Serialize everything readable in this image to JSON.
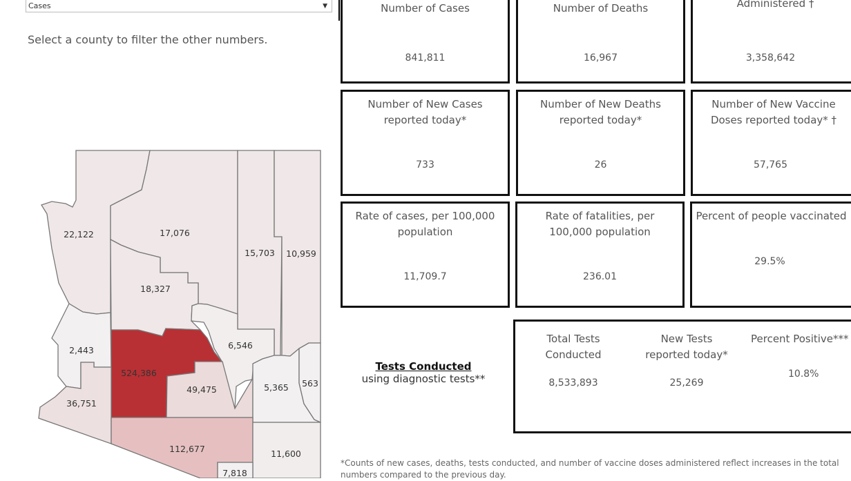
{
  "filter": {
    "selected": "Cases"
  },
  "hint": "Select a county to filter the other numbers.",
  "cards": [
    {
      "title": "Number of Cases",
      "value": "841,811"
    },
    {
      "title": "Number of Deaths",
      "value": "16,967"
    },
    {
      "title": "Number of Vaccine Doses Administered †",
      "value": "3,358,642"
    },
    {
      "title": "Number of New Cases reported today*",
      "value": "733"
    },
    {
      "title": "Number of New Deaths reported today*",
      "value": "26"
    },
    {
      "title": "Number of New Vaccine Doses reported today* †",
      "value": "57,765"
    },
    {
      "title": "Rate of cases, per 100,000 population",
      "value": "11,709.7"
    },
    {
      "title": "Rate of fatalities, per 100,000 population",
      "value": "236.01"
    },
    {
      "title": "Percent of people vaccinated",
      "value": "29.5%"
    }
  ],
  "tests": {
    "heading": "Tests Conducted",
    "sub": "using diagnostic tests**",
    "cols": [
      {
        "title": "Total Tests Conducted",
        "value": "8,533,893"
      },
      {
        "title": "New Tests reported today*",
        "value": "25,269"
      },
      {
        "title": "Percent Positive***",
        "value": "10.8%"
      }
    ]
  },
  "footnote": "*Counts of new cases, deaths, tests conducted, and number of vaccine doses administered reflect increases in the total numbers compared to the previous day.",
  "counties": [
    {
      "label": "22,122",
      "color": "#f0e8e8"
    },
    {
      "label": "17,076",
      "color": "#f0e8e8"
    },
    {
      "label": "15,703",
      "color": "#f0e8e8"
    },
    {
      "label": "10,959",
      "color": "#f0e8e8"
    },
    {
      "label": "18,327",
      "color": "#f0e8e8"
    },
    {
      "label": "6,546",
      "color": "#f2eeee"
    },
    {
      "label": "2,443",
      "color": "#f2f0f0"
    },
    {
      "label": "524,386",
      "color": "#b83034"
    },
    {
      "label": "49,475",
      "color": "#ecdbdb"
    },
    {
      "label": "36,751",
      "color": "#ede0e0"
    },
    {
      "label": "5,365",
      "color": "#f2f0f0"
    },
    {
      "label": "563",
      "color": "#f2f0f0"
    },
    {
      "label": "112,677",
      "color": "#e6c0c1"
    },
    {
      "label": "11,600",
      "color": "#f1eded"
    },
    {
      "label": "7,818",
      "color": "#f2f0f0"
    }
  ]
}
